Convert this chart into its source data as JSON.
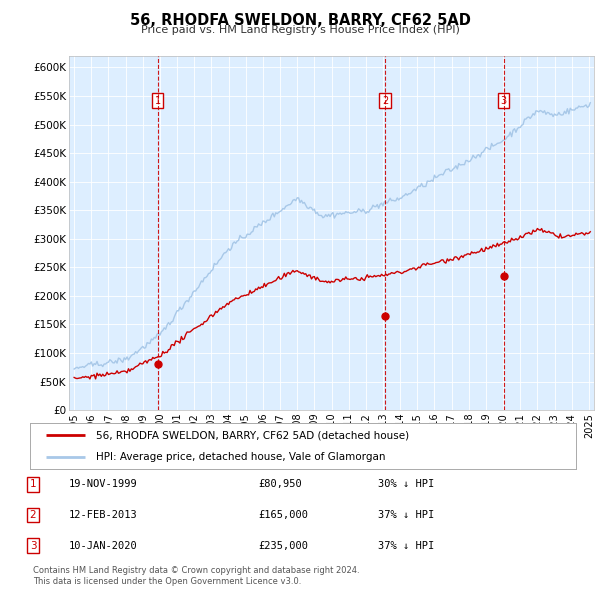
{
  "title": "56, RHODFA SWELDON, BARRY, CF62 5AD",
  "subtitle": "Price paid vs. HM Land Registry's House Price Index (HPI)",
  "legend_line1": "56, RHODFA SWELDON, BARRY, CF62 5AD (detached house)",
  "legend_line2": "HPI: Average price, detached house, Vale of Glamorgan",
  "footer1": "Contains HM Land Registry data © Crown copyright and database right 2024.",
  "footer2": "This data is licensed under the Open Government Licence v3.0.",
  "sales": [
    {
      "num": 1,
      "date": "19-NOV-1999",
      "price": 80950,
      "label": "30% ↓ HPI",
      "x_year": 1999.88
    },
    {
      "num": 2,
      "date": "12-FEB-2013",
      "price": 165000,
      "label": "37% ↓ HPI",
      "x_year": 2013.12
    },
    {
      "num": 3,
      "date": "10-JAN-2020",
      "price": 235000,
      "label": "37% ↓ HPI",
      "x_year": 2020.03
    }
  ],
  "hpi_color": "#a8c8e8",
  "price_color": "#CC0000",
  "plot_bg_color": "#ddeeff",
  "ylim": [
    0,
    620000
  ],
  "yticks": [
    0,
    50000,
    100000,
    150000,
    200000,
    250000,
    300000,
    350000,
    400000,
    450000,
    500000,
    550000,
    600000
  ],
  "xlim_start": 1994.7,
  "xlim_end": 2025.3
}
